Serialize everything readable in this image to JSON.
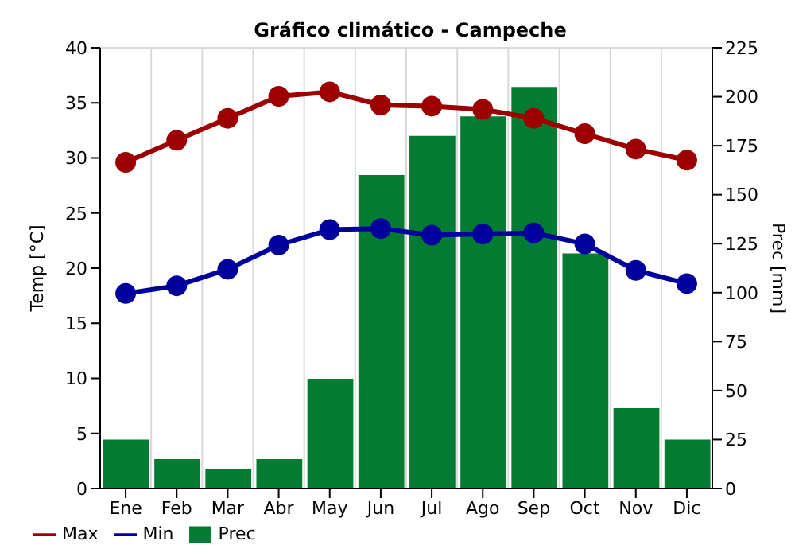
{
  "chart_data": {
    "type": "bar",
    "title": "Gráfico climático - Campeche",
    "ylabel": "Temp [°C]",
    "y2label": "Prec [mm]",
    "categories": [
      "Ene",
      "Feb",
      "Mar",
      "Abr",
      "May",
      "Jun",
      "Jul",
      "Ago",
      "Sep",
      "Oct",
      "Nov",
      "Dic"
    ],
    "series": [
      {
        "name": "Prec",
        "axis": "y2",
        "color": "#047b32",
        "values": [
          25,
          15,
          10,
          15,
          56,
          160,
          180,
          190,
          205,
          120,
          41,
          25
        ]
      },
      {
        "name": "Min",
        "type": "line",
        "color": "#00009c",
        "values": [
          17.7,
          18.4,
          19.9,
          22.1,
          23.5,
          23.6,
          23.0,
          23.1,
          23.2,
          22.2,
          19.8,
          18.6
        ]
      },
      {
        "name": "Max",
        "type": "line",
        "color": "#9c0000",
        "values": [
          29.6,
          31.6,
          33.6,
          35.6,
          36.0,
          34.8,
          34.7,
          34.4,
          33.6,
          32.2,
          30.8,
          29.8
        ]
      }
    ],
    "ylim": [
      0,
      40
    ],
    "yticks": [
      0,
      5,
      10,
      15,
      20,
      25,
      30,
      35,
      40
    ],
    "y2lim": [
      0,
      225
    ],
    "y2ticks": [
      0,
      25,
      50,
      75,
      100,
      125,
      150,
      175,
      200,
      225
    ],
    "grid": true,
    "legend": "bottom left",
    "marker": "circle",
    "line_style": "solid"
  }
}
